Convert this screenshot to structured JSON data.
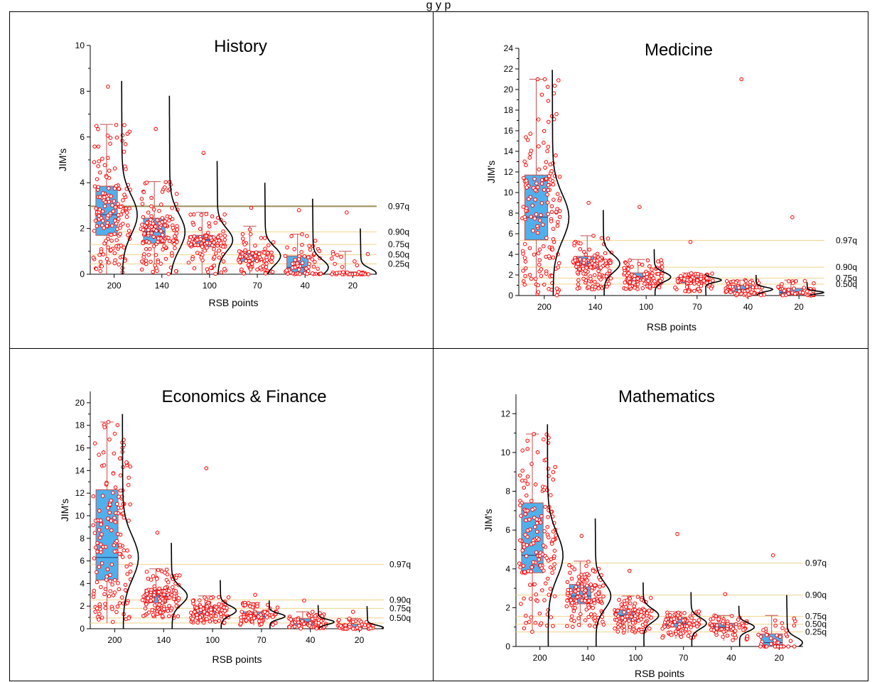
{
  "caption": "g                                                                    y                      p",
  "colors": {
    "box_fill": "#4fb0ec",
    "box_edge": "#c0504d",
    "points": "#ff0000",
    "curve": "#000000",
    "quantile_line": "#f0d28a",
    "quantile_line_97_history": "#9b8c56"
  },
  "chart_data": [
    {
      "type": "box",
      "title": "History",
      "xlabel": "RSB points",
      "ylabel": "JIM's",
      "categories": [
        "200",
        "140",
        "100",
        "70",
        "40",
        "20"
      ],
      "ylim": [
        0,
        10
      ],
      "yticks": [
        0,
        2,
        4,
        6,
        8,
        10
      ],
      "boxes": [
        {
          "q1": 1.7,
          "median": 2.6,
          "q3": 3.85,
          "whisker_low": 0,
          "whisker_high": 6.55,
          "max": 8.2,
          "curve_peak": 8.45
        },
        {
          "q1": 1.35,
          "median": 1.85,
          "q3": 2.45,
          "whisker_low": 0,
          "whisker_high": 4.05,
          "max": 6.35,
          "curve_peak": 7.8
        },
        {
          "q1": 1.2,
          "median": 1.5,
          "q3": 1.7,
          "whisker_low": 0,
          "whisker_high": 2.7,
          "max": 5.3,
          "curve_peak": 4.95
        },
        {
          "q1": 0.55,
          "median": 0.8,
          "q3": 1.0,
          "whisker_low": 0,
          "whisker_high": 2.1,
          "max": 2.9,
          "curve_peak": 4.0
        },
        {
          "q1": 0.05,
          "median": 0.3,
          "q3": 0.8,
          "whisker_low": 0,
          "whisker_high": 1.75,
          "max": 2.8,
          "curve_peak": 3.3
        },
        {
          "q1": 0.0,
          "median": 0.05,
          "q3": 0.1,
          "whisker_low": 0,
          "whisker_high": 1.0,
          "max": 2.7,
          "curve_peak": 2.0
        }
      ],
      "quantile_lines": [
        {
          "label": "0.97q",
          "value": 2.97
        },
        {
          "label": "0.90q",
          "value": 1.85
        },
        {
          "label": "0.75q",
          "value": 1.3
        },
        {
          "label": "0.50q",
          "value": 0.85
        },
        {
          "label": "0.25q",
          "value": 0.45
        }
      ]
    },
    {
      "type": "box",
      "title": "Medicine",
      "xlabel": "RSB points",
      "ylabel": "JIM's",
      "categories": [
        "200",
        "140",
        "100",
        "70",
        "40",
        "20"
      ],
      "ylim": [
        0,
        24
      ],
      "yticks": [
        0,
        2,
        4,
        6,
        8,
        10,
        12,
        14,
        16,
        18,
        20,
        22,
        24
      ],
      "boxes": [
        {
          "q1": 5.4,
          "median": 7.6,
          "q3": 11.7,
          "whisker_low": 0,
          "whisker_high": 21.0,
          "max": 21.0,
          "curve_peak": 21.9
        },
        {
          "q1": 2.6,
          "median": 3.1,
          "q3": 3.8,
          "whisker_low": 0.5,
          "whisker_high": 5.8,
          "max": 9.0,
          "curve_peak": 8.3
        },
        {
          "q1": 1.4,
          "median": 1.8,
          "q3": 2.2,
          "whisker_low": 0.6,
          "whisker_high": 3.5,
          "max": 8.6,
          "curve_peak": 4.5
        },
        {
          "q1": 1.2,
          "median": 1.5,
          "q3": 1.8,
          "whisker_low": 0.4,
          "whisker_high": 2.2,
          "max": 5.2,
          "curve_peak": 2.1
        },
        {
          "q1": 0.3,
          "median": 0.6,
          "q3": 1.0,
          "whisker_low": 0,
          "whisker_high": 1.5,
          "max": 21.0,
          "curve_peak": 2.0
        },
        {
          "q1": 0.1,
          "median": 0.3,
          "q3": 0.7,
          "whisker_low": 0,
          "whisker_high": 1.5,
          "max": 7.6,
          "curve_peak": 1.3
        }
      ],
      "quantile_lines": [
        {
          "label": "0.97q",
          "value": 5.35
        },
        {
          "label": "0.90q",
          "value": 2.75
        },
        {
          "label": "0.75q",
          "value": 1.7
        },
        {
          "label": "0.50q",
          "value": 1.1
        }
      ]
    },
    {
      "type": "box",
      "title": "Economics & Finance",
      "xlabel": "RSB points",
      "ylabel": "JIM's",
      "categories": [
        "200",
        "140",
        "100",
        "70",
        "40",
        "20"
      ],
      "ylim": [
        0,
        21
      ],
      "yticks": [
        0,
        2,
        4,
        6,
        8,
        10,
        12,
        14,
        16,
        18,
        20
      ],
      "boxes": [
        {
          "q1": 4.3,
          "median": 6.3,
          "q3": 12.3,
          "whisker_low": 0.5,
          "whisker_high": 18.3,
          "max": 18.3,
          "curve_peak": 19.0
        },
        {
          "q1": 2.3,
          "median": 2.9,
          "q3": 3.5,
          "whisker_low": 0.9,
          "whisker_high": 5.3,
          "max": 8.5,
          "curve_peak": 7.6
        },
        {
          "q1": 1.2,
          "median": 1.6,
          "q3": 2.0,
          "whisker_low": 0.5,
          "whisker_high": 2.9,
          "max": 14.2,
          "curve_peak": 4.3
        },
        {
          "q1": 0.9,
          "median": 1.1,
          "q3": 1.5,
          "whisker_low": 0.3,
          "whisker_high": 2.3,
          "max": 3.0,
          "curve_peak": 2.5
        },
        {
          "q1": 0.3,
          "median": 0.6,
          "q3": 0.9,
          "whisker_low": 0,
          "whisker_high": 1.5,
          "max": 2.5,
          "curve_peak": 2.1
        },
        {
          "q1": 0.0,
          "median": 0.1,
          "q3": 0.4,
          "whisker_low": 0,
          "whisker_high": 0.9,
          "max": 1.5,
          "curve_peak": 2.0
        }
      ],
      "quantile_lines": [
        {
          "label": "0.97q",
          "value": 5.7
        },
        {
          "label": "0.90q",
          "value": 2.55
        },
        {
          "label": "0.75q",
          "value": 1.8
        },
        {
          "label": "0.50q",
          "value": 0.95
        },
        {
          "label": "",
          "value": 0.5
        }
      ]
    },
    {
      "type": "box",
      "title": "Mathematics",
      "xlabel": "RSB points",
      "ylabel": "JIM's",
      "categories": [
        "200",
        "140",
        "100",
        "70",
        "40",
        "20"
      ],
      "ylim": [
        0,
        13
      ],
      "yticks": [
        0,
        2,
        4,
        6,
        8,
        10,
        12
      ],
      "boxes": [
        {
          "q1": 3.8,
          "median": 4.7,
          "q3": 7.4,
          "whisker_low": 0.7,
          "whisker_high": 10.95,
          "max": 10.95,
          "curve_peak": 11.45
        },
        {
          "q1": 2.2,
          "median": 2.6,
          "q3": 3.2,
          "whisker_low": 1.0,
          "whisker_high": 4.4,
          "max": 5.7,
          "curve_peak": 6.6
        },
        {
          "q1": 1.3,
          "median": 1.6,
          "q3": 1.9,
          "whisker_low": 0.7,
          "whisker_high": 2.6,
          "max": 3.9,
          "curve_peak": 3.3
        },
        {
          "q1": 1.0,
          "median": 1.2,
          "q3": 1.5,
          "whisker_low": 0.4,
          "whisker_high": 1.8,
          "max": 5.8,
          "curve_peak": 2.8
        },
        {
          "q1": 0.8,
          "median": 1.0,
          "q3": 1.2,
          "whisker_low": 0.3,
          "whisker_high": 1.6,
          "max": 2.7,
          "curve_peak": 2.1
        },
        {
          "q1": 0.0,
          "median": 0.2,
          "q3": 0.65,
          "whisker_low": 0,
          "whisker_high": 1.6,
          "max": 4.7,
          "curve_peak": 2.65
        }
      ],
      "quantile_lines": [
        {
          "label": "0.97q",
          "value": 4.3
        },
        {
          "label": "0.90q",
          "value": 2.65
        },
        {
          "label": "0.75q",
          "value": 1.55
        },
        {
          "label": "0.50q",
          "value": 1.15
        },
        {
          "label": "0.25q",
          "value": 0.75
        }
      ]
    }
  ]
}
